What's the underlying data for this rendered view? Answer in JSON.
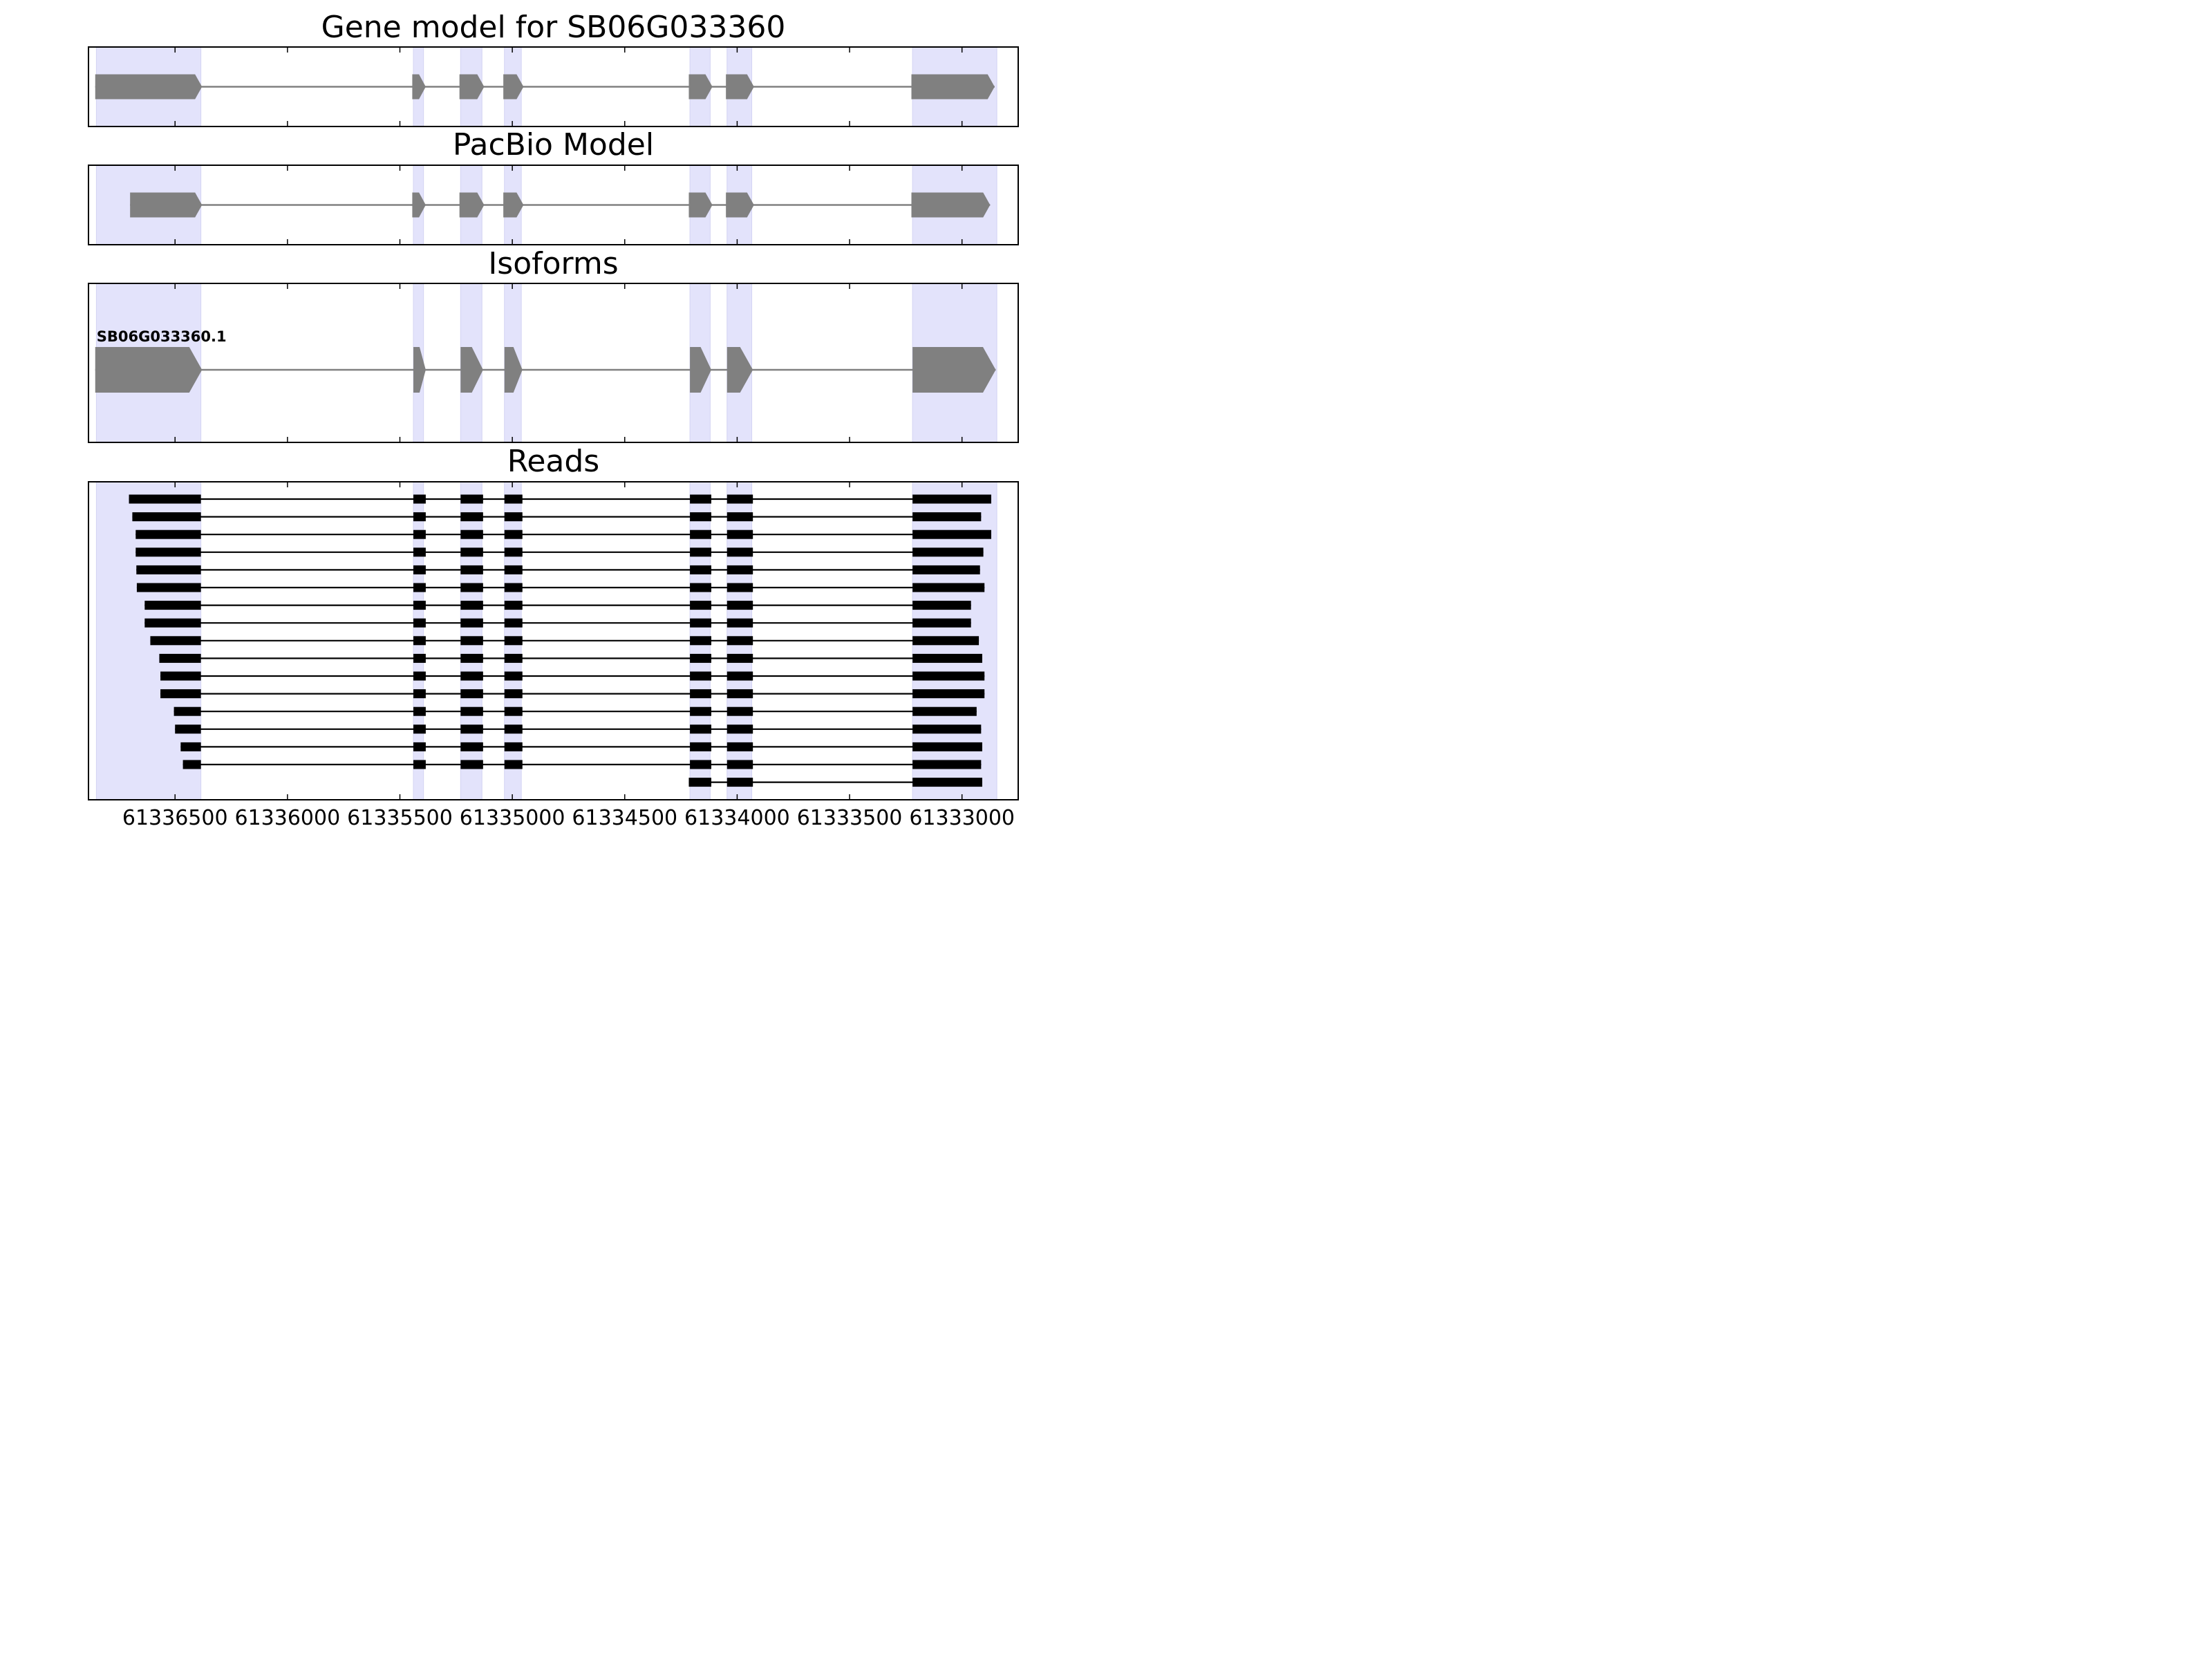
{
  "chart_data": {
    "type": "gene-structure",
    "x_axis": {
      "reversed": true,
      "xlim": [
        61336885,
        61332750
      ],
      "ticks": [
        61336500,
        61336000,
        61335500,
        61335000,
        61334500,
        61334000,
        61333500,
        61333000
      ],
      "tick_labels": [
        "61336500",
        "61336000",
        "61335500",
        "61335000",
        "61334500",
        "61334000",
        "61333500",
        "61333000"
      ]
    },
    "exon_highlights": [
      [
        61336850,
        61336385
      ],
      [
        61335440,
        61335395
      ],
      [
        61335230,
        61335135
      ],
      [
        61335035,
        61334960
      ],
      [
        61334210,
        61334120
      ],
      [
        61334045,
        61333935
      ],
      [
        61333220,
        61332845
      ]
    ],
    "panels": [
      {
        "title": "Gene model for SB06G033360",
        "style": "gene",
        "tracks": [
          {
            "label": "",
            "exons": [
              [
                61336855,
                61336380
              ],
              [
                61335445,
                61335385
              ],
              [
                61335235,
                61335125
              ],
              [
                61335040,
                61334950
              ],
              [
                61334215,
                61334110
              ],
              [
                61334050,
                61333925
              ],
              [
                61333225,
                61332855
              ]
            ]
          }
        ]
      },
      {
        "title": "PacBio Model",
        "style": "gene",
        "tracks": [
          {
            "label": "",
            "exons": [
              [
                61336700,
                61336380
              ],
              [
                61335445,
                61335385
              ],
              [
                61335235,
                61335125
              ],
              [
                61335040,
                61334950
              ],
              [
                61334215,
                61334110
              ],
              [
                61334050,
                61333925
              ],
              [
                61333225,
                61332875
              ]
            ]
          }
        ]
      },
      {
        "title": "Isoforms",
        "style": "gene",
        "tracks": [
          {
            "label": "SB06G033360.1",
            "exons": [
              [
                61336855,
                61336380
              ],
              [
                61335440,
                61335385
              ],
              [
                61335230,
                61335130
              ],
              [
                61335035,
                61334955
              ],
              [
                61334210,
                61334115
              ],
              [
                61334045,
                61333930
              ],
              [
                61333220,
                61332850
              ]
            ]
          }
        ]
      },
      {
        "title": "Reads",
        "style": "read",
        "tracks": [
          {
            "exons": [
              [
                61336705,
                61336385
              ],
              [
                61335440,
                61335385
              ],
              [
                61335230,
                61335130
              ],
              [
                61335035,
                61334955
              ],
              [
                61334210,
                61334115
              ],
              [
                61334045,
                61333930
              ],
              [
                61333220,
                61332870
              ]
            ]
          },
          {
            "exons": [
              [
                61336690,
                61336385
              ],
              [
                61335440,
                61335385
              ],
              [
                61335230,
                61335130
              ],
              [
                61335035,
                61334955
              ],
              [
                61334210,
                61334115
              ],
              [
                61334045,
                61333930
              ],
              [
                61333220,
                61332915
              ]
            ]
          },
          {
            "exons": [
              [
                61336675,
                61336385
              ],
              [
                61335440,
                61335385
              ],
              [
                61335230,
                61335130
              ],
              [
                61335035,
                61334955
              ],
              [
                61334210,
                61334115
              ],
              [
                61334045,
                61333930
              ],
              [
                61333220,
                61332870
              ]
            ]
          },
          {
            "exons": [
              [
                61336675,
                61336385
              ],
              [
                61335440,
                61335385
              ],
              [
                61335230,
                61335130
              ],
              [
                61335035,
                61334955
              ],
              [
                61334210,
                61334115
              ],
              [
                61334045,
                61333930
              ],
              [
                61333220,
                61332905
              ]
            ]
          },
          {
            "exons": [
              [
                61336672,
                61336385
              ],
              [
                61335440,
                61335385
              ],
              [
                61335230,
                61335130
              ],
              [
                61335035,
                61334955
              ],
              [
                61334210,
                61334115
              ],
              [
                61334045,
                61333930
              ],
              [
                61333220,
                61332920
              ]
            ]
          },
          {
            "exons": [
              [
                61336670,
                61336385
              ],
              [
                61335440,
                61335385
              ],
              [
                61335230,
                61335130
              ],
              [
                61335035,
                61334955
              ],
              [
                61334210,
                61334115
              ],
              [
                61334045,
                61333930
              ],
              [
                61333220,
                61332900
              ]
            ]
          },
          {
            "exons": [
              [
                61336635,
                61336385
              ],
              [
                61335440,
                61335385
              ],
              [
                61335230,
                61335130
              ],
              [
                61335035,
                61334955
              ],
              [
                61334210,
                61334115
              ],
              [
                61334045,
                61333930
              ],
              [
                61333220,
                61332960
              ]
            ]
          },
          {
            "exons": [
              [
                61336635,
                61336385
              ],
              [
                61335440,
                61335385
              ],
              [
                61335230,
                61335130
              ],
              [
                61335035,
                61334955
              ],
              [
                61334210,
                61334115
              ],
              [
                61334045,
                61333930
              ],
              [
                61333220,
                61332960
              ]
            ]
          },
          {
            "exons": [
              [
                61336610,
                61336385
              ],
              [
                61335440,
                61335385
              ],
              [
                61335230,
                61335130
              ],
              [
                61335035,
                61334955
              ],
              [
                61334210,
                61334115
              ],
              [
                61334045,
                61333930
              ],
              [
                61333220,
                61332925
              ]
            ]
          },
          {
            "exons": [
              [
                61336570,
                61336385
              ],
              [
                61335440,
                61335385
              ],
              [
                61335230,
                61335130
              ],
              [
                61335035,
                61334955
              ],
              [
                61334210,
                61334115
              ],
              [
                61334045,
                61333930
              ],
              [
                61333220,
                61332910
              ]
            ]
          },
          {
            "exons": [
              [
                61336565,
                61336385
              ],
              [
                61335440,
                61335385
              ],
              [
                61335230,
                61335130
              ],
              [
                61335035,
                61334955
              ],
              [
                61334210,
                61334115
              ],
              [
                61334045,
                61333930
              ],
              [
                61333220,
                61332900
              ]
            ]
          },
          {
            "exons": [
              [
                61336565,
                61336385
              ],
              [
                61335440,
                61335385
              ],
              [
                61335230,
                61335130
              ],
              [
                61335035,
                61334955
              ],
              [
                61334210,
                61334115
              ],
              [
                61334045,
                61333930
              ],
              [
                61333220,
                61332900
              ]
            ]
          },
          {
            "exons": [
              [
                61336505,
                61336385
              ],
              [
                61335440,
                61335385
              ],
              [
                61335230,
                61335130
              ],
              [
                61335035,
                61334955
              ],
              [
                61334210,
                61334115
              ],
              [
                61334045,
                61333930
              ],
              [
                61333220,
                61332935
              ]
            ]
          },
          {
            "exons": [
              [
                61336500,
                61336385
              ],
              [
                61335440,
                61335385
              ],
              [
                61335230,
                61335130
              ],
              [
                61335035,
                61334955
              ],
              [
                61334210,
                61334115
              ],
              [
                61334045,
                61333930
              ],
              [
                61333220,
                61332915
              ]
            ]
          },
          {
            "exons": [
              [
                61336475,
                61336385
              ],
              [
                61335440,
                61335385
              ],
              [
                61335230,
                61335130
              ],
              [
                61335035,
                61334955
              ],
              [
                61334210,
                61334115
              ],
              [
                61334045,
                61333930
              ],
              [
                61333220,
                61332910
              ]
            ]
          },
          {
            "exons": [
              [
                61336465,
                61336385
              ],
              [
                61335440,
                61335385
              ],
              [
                61335230,
                61335130
              ],
              [
                61335035,
                61334955
              ],
              [
                61334210,
                61334115
              ],
              [
                61334045,
                61333930
              ],
              [
                61333220,
                61332915
              ]
            ]
          },
          {
            "exons": [
              [
                61334215,
                61334115
              ],
              [
                61334045,
                61333930
              ],
              [
                61333220,
                61332910
              ]
            ]
          }
        ]
      }
    ]
  }
}
